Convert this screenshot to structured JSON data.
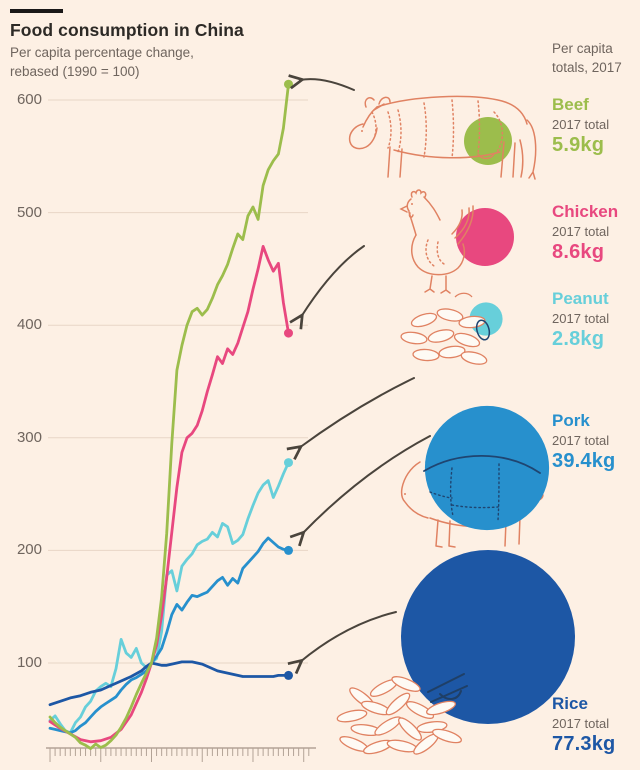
{
  "header": {
    "title": "Food consumption in China",
    "subtitle_line1": "Per capita percentage change,",
    "subtitle_line2": "rebased (1990 = 100)"
  },
  "totals_panel": {
    "heading_line1": "Per capita",
    "heading_line2": "totals, 2017",
    "items": [
      {
        "label": "Beef",
        "sub_label": "2017 total",
        "value": "5.9kg",
        "kg": 5.9,
        "color": "#9cbd4c"
      },
      {
        "label": "Chicken",
        "sub_label": "2017 total",
        "value": "8.6kg",
        "kg": 8.6,
        "color": "#e8487f"
      },
      {
        "label": "Peanut",
        "sub_label": "2017 total",
        "value": "2.8kg",
        "kg": 2.8,
        "color": "#67cfda"
      },
      {
        "label": "Pork",
        "sub_label": "2017 total",
        "value": "39.4kg",
        "kg": 39.4,
        "color": "#2790cd"
      },
      {
        "label": "Rice",
        "sub_label": "2017 total",
        "value": "77.3kg",
        "kg": 77.3,
        "color": "#1d57a5"
      }
    ]
  },
  "palette": {
    "background": "#fdf0e4",
    "gridline": "#e8d6c6",
    "axis": "#b3a396",
    "arrow": "#4a443c",
    "illustration": "#e08262",
    "dark_overlay": "#1f4571",
    "text_dark": "#2d2a26",
    "text_gray": "#6f655e"
  },
  "chart_data": {
    "type": "line",
    "title": "Food consumption in China",
    "subtitle": "Per capita percentage change, rebased (1990 = 100)",
    "rebase_note": "1990 = 100",
    "x_range": [
      1970,
      2017
    ],
    "ylim": [
      0,
      620
    ],
    "yticks": [
      100,
      200,
      300,
      400,
      500,
      600
    ],
    "grid": true,
    "legend_position": "right-panel-with-illustrations",
    "x_tick_labels_visible": false,
    "series": [
      {
        "name": "Peanut",
        "color": "#67cfda",
        "total_2017_kg": 2.8,
        "end_value": 278,
        "points": [
          [
            1970,
            49
          ],
          [
            1971,
            53
          ],
          [
            1972,
            46
          ],
          [
            1973,
            40
          ],
          [
            1974,
            38
          ],
          [
            1975,
            47
          ],
          [
            1976,
            52
          ],
          [
            1977,
            61
          ],
          [
            1978,
            66
          ],
          [
            1979,
            75
          ],
          [
            1980,
            79
          ],
          [
            1981,
            82
          ],
          [
            1982,
            79
          ],
          [
            1983,
            95
          ],
          [
            1984,
            121
          ],
          [
            1985,
            109
          ],
          [
            1986,
            105
          ],
          [
            1987,
            113
          ],
          [
            1988,
            100
          ],
          [
            1989,
            96
          ],
          [
            1990,
            100
          ],
          [
            1991,
            104
          ],
          [
            1992,
            128
          ],
          [
            1993,
            178
          ],
          [
            1994,
            182
          ],
          [
            1995,
            164
          ],
          [
            1996,
            186
          ],
          [
            1997,
            192
          ],
          [
            1998,
            197
          ],
          [
            1999,
            205
          ],
          [
            2000,
            208
          ],
          [
            2001,
            210
          ],
          [
            2002,
            216
          ],
          [
            2003,
            212
          ],
          [
            2004,
            224
          ],
          [
            2005,
            221
          ],
          [
            2006,
            206
          ],
          [
            2007,
            209
          ],
          [
            2008,
            214
          ],
          [
            2009,
            228
          ],
          [
            2010,
            240
          ],
          [
            2011,
            251
          ],
          [
            2012,
            258
          ],
          [
            2013,
            262
          ],
          [
            2014,
            247
          ],
          [
            2015,
            257
          ],
          [
            2016,
            268
          ],
          [
            2017,
            278
          ]
        ]
      },
      {
        "name": "Pork",
        "color": "#2790cd",
        "total_2017_kg": 39.4,
        "end_value": 200,
        "points": [
          [
            1970,
            42
          ],
          [
            1971,
            41
          ],
          [
            1972,
            40
          ],
          [
            1973,
            39
          ],
          [
            1974,
            38
          ],
          [
            1975,
            40
          ],
          [
            1976,
            44
          ],
          [
            1977,
            47
          ],
          [
            1978,
            52
          ],
          [
            1979,
            57
          ],
          [
            1980,
            61
          ],
          [
            1981,
            64
          ],
          [
            1982,
            67
          ],
          [
            1983,
            70
          ],
          [
            1984,
            76
          ],
          [
            1985,
            81
          ],
          [
            1986,
            85
          ],
          [
            1987,
            87
          ],
          [
            1988,
            90
          ],
          [
            1989,
            93
          ],
          [
            1990,
            100
          ],
          [
            1991,
            106
          ],
          [
            1992,
            113
          ],
          [
            1993,
            127
          ],
          [
            1994,
            143
          ],
          [
            1995,
            152
          ],
          [
            1996,
            147
          ],
          [
            1997,
            154
          ],
          [
            1998,
            160
          ],
          [
            1999,
            159
          ],
          [
            2000,
            161
          ],
          [
            2001,
            163
          ],
          [
            2002,
            168
          ],
          [
            2003,
            173
          ],
          [
            2004,
            176
          ],
          [
            2005,
            169
          ],
          [
            2006,
            175
          ],
          [
            2007,
            171
          ],
          [
            2008,
            184
          ],
          [
            2009,
            189
          ],
          [
            2010,
            194
          ],
          [
            2011,
            199
          ],
          [
            2012,
            206
          ],
          [
            2013,
            211
          ],
          [
            2014,
            207
          ],
          [
            2015,
            203
          ],
          [
            2016,
            201
          ],
          [
            2017,
            200
          ]
        ]
      },
      {
        "name": "Rice",
        "color": "#1d57a5",
        "total_2017_kg": 77.3,
        "end_value": 89,
        "points": [
          [
            1970,
            63
          ],
          [
            1972,
            66
          ],
          [
            1974,
            69
          ],
          [
            1976,
            71
          ],
          [
            1978,
            74
          ],
          [
            1980,
            76
          ],
          [
            1982,
            80
          ],
          [
            1984,
            84
          ],
          [
            1986,
            88
          ],
          [
            1988,
            93
          ],
          [
            1989,
            97
          ],
          [
            1990,
            100
          ],
          [
            1991,
            99
          ],
          [
            1992,
            98
          ],
          [
            1993,
            98
          ],
          [
            1994,
            99
          ],
          [
            1995,
            100
          ],
          [
            1996,
            101
          ],
          [
            1997,
            101
          ],
          [
            1998,
            101
          ],
          [
            1999,
            100
          ],
          [
            2000,
            99
          ],
          [
            2001,
            97
          ],
          [
            2002,
            95
          ],
          [
            2003,
            93
          ],
          [
            2004,
            92
          ],
          [
            2005,
            91
          ],
          [
            2006,
            90
          ],
          [
            2007,
            89
          ],
          [
            2008,
            88
          ],
          [
            2009,
            88
          ],
          [
            2010,
            88
          ],
          [
            2011,
            88
          ],
          [
            2012,
            88
          ],
          [
            2013,
            88
          ],
          [
            2014,
            88
          ],
          [
            2015,
            89
          ],
          [
            2016,
            89
          ],
          [
            2017,
            89
          ]
        ]
      },
      {
        "name": "Chicken",
        "color": "#e8487f",
        "total_2017_kg": 8.6,
        "end_value": 393,
        "points": [
          [
            1970,
            48
          ],
          [
            1972,
            42
          ],
          [
            1974,
            37
          ],
          [
            1976,
            32
          ],
          [
            1978,
            30
          ],
          [
            1980,
            31
          ],
          [
            1982,
            34
          ],
          [
            1984,
            41
          ],
          [
            1986,
            54
          ],
          [
            1988,
            74
          ],
          [
            1989,
            86
          ],
          [
            1990,
            100
          ],
          [
            1991,
            116
          ],
          [
            1992,
            142
          ],
          [
            1993,
            176
          ],
          [
            1994,
            216
          ],
          [
            1995,
            256
          ],
          [
            1996,
            287
          ],
          [
            1997,
            300
          ],
          [
            1998,
            304
          ],
          [
            1999,
            311
          ],
          [
            2000,
            324
          ],
          [
            2001,
            341
          ],
          [
            2002,
            356
          ],
          [
            2003,
            372
          ],
          [
            2004,
            366
          ],
          [
            2005,
            379
          ],
          [
            2006,
            374
          ],
          [
            2007,
            384
          ],
          [
            2008,
            398
          ],
          [
            2009,
            412
          ],
          [
            2010,
            432
          ],
          [
            2011,
            450
          ],
          [
            2012,
            470
          ],
          [
            2013,
            458
          ],
          [
            2014,
            448
          ],
          [
            2015,
            455
          ],
          [
            2016,
            420
          ],
          [
            2017,
            393
          ]
        ]
      },
      {
        "name": "Beef",
        "color": "#9cbd4c",
        "total_2017_kg": 5.9,
        "end_value": 614,
        "points": [
          [
            1970,
            52
          ],
          [
            1971,
            47
          ],
          [
            1972,
            43
          ],
          [
            1973,
            40
          ],
          [
            1974,
            37
          ],
          [
            1975,
            34
          ],
          [
            1976,
            29
          ],
          [
            1977,
            27
          ],
          [
            1978,
            24
          ],
          [
            1979,
            28
          ],
          [
            1980,
            25
          ],
          [
            1981,
            27
          ],
          [
            1982,
            31
          ],
          [
            1983,
            36
          ],
          [
            1984,
            43
          ],
          [
            1985,
            51
          ],
          [
            1986,
            61
          ],
          [
            1987,
            72
          ],
          [
            1988,
            82
          ],
          [
            1989,
            91
          ],
          [
            1990,
            100
          ],
          [
            1991,
            122
          ],
          [
            1992,
            158
          ],
          [
            1993,
            215
          ],
          [
            1994,
            295
          ],
          [
            1995,
            360
          ],
          [
            1996,
            382
          ],
          [
            1997,
            400
          ],
          [
            1998,
            412
          ],
          [
            1999,
            415
          ],
          [
            2000,
            409
          ],
          [
            2001,
            414
          ],
          [
            2002,
            424
          ],
          [
            2003,
            436
          ],
          [
            2004,
            444
          ],
          [
            2005,
            454
          ],
          [
            2006,
            468
          ],
          [
            2007,
            481
          ],
          [
            2008,
            476
          ],
          [
            2009,
            497
          ],
          [
            2010,
            505
          ],
          [
            2011,
            494
          ],
          [
            2012,
            524
          ],
          [
            2013,
            538
          ],
          [
            2014,
            546
          ],
          [
            2015,
            552
          ],
          [
            2016,
            575
          ],
          [
            2017,
            614
          ]
        ]
      }
    ]
  }
}
